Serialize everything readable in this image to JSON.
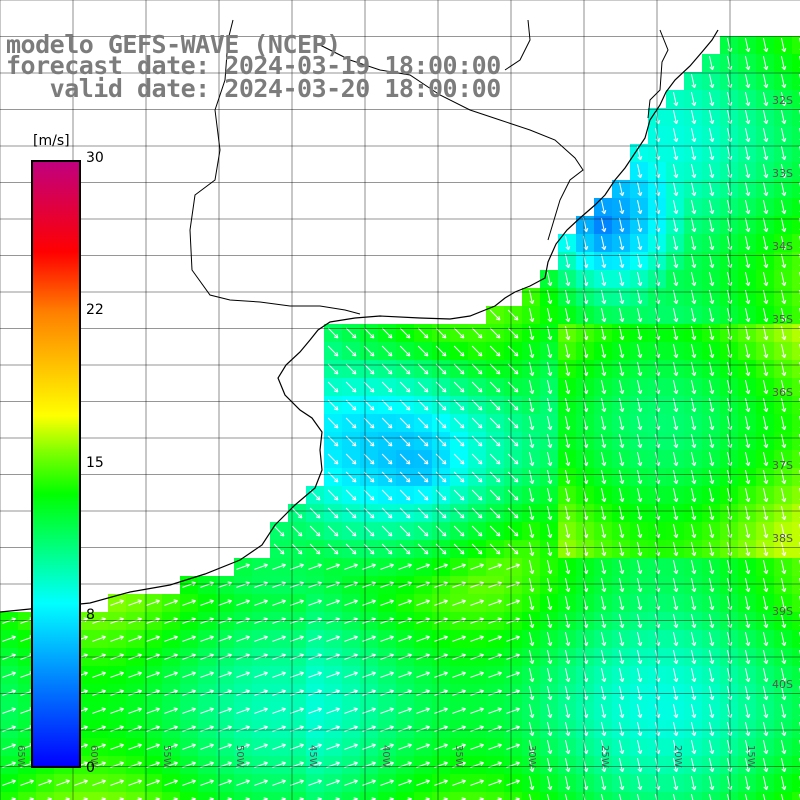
{
  "title": {
    "line1": "modelo GEFS-WAVE (NCEP)",
    "line2": "forecast date: 2024-03-19 18:00:00",
    "line3": "   valid date: 2024-03-20 18:00:00"
  },
  "colorbar": {
    "unit": "[m/s]",
    "ticks": [
      "30",
      "22",
      "15",
      "8",
      "0"
    ],
    "colors": [
      "#0000ff",
      "#0080ff",
      "#00ffff",
      "#00ff00",
      "#ffff00",
      "#ff8000",
      "#ff0000",
      "#c00080"
    ]
  },
  "map": {
    "longitude_labels": [
      "65W",
      "60W",
      "55W",
      "50W",
      "45W",
      "40W",
      "35W",
      "30W",
      "25W",
      "20W",
      "15W"
    ],
    "latitude_labels": [
      "32S",
      "33S",
      "34S",
      "35S",
      "36S",
      "37S",
      "38S",
      "39S",
      "40S"
    ],
    "field": "wind speed and direction",
    "ocean_base_color": "#40ff60",
    "land_color": "#ffffff",
    "coast_color": "#000000",
    "grid_color": "#000000",
    "arrow_color": "#ffffff"
  }
}
